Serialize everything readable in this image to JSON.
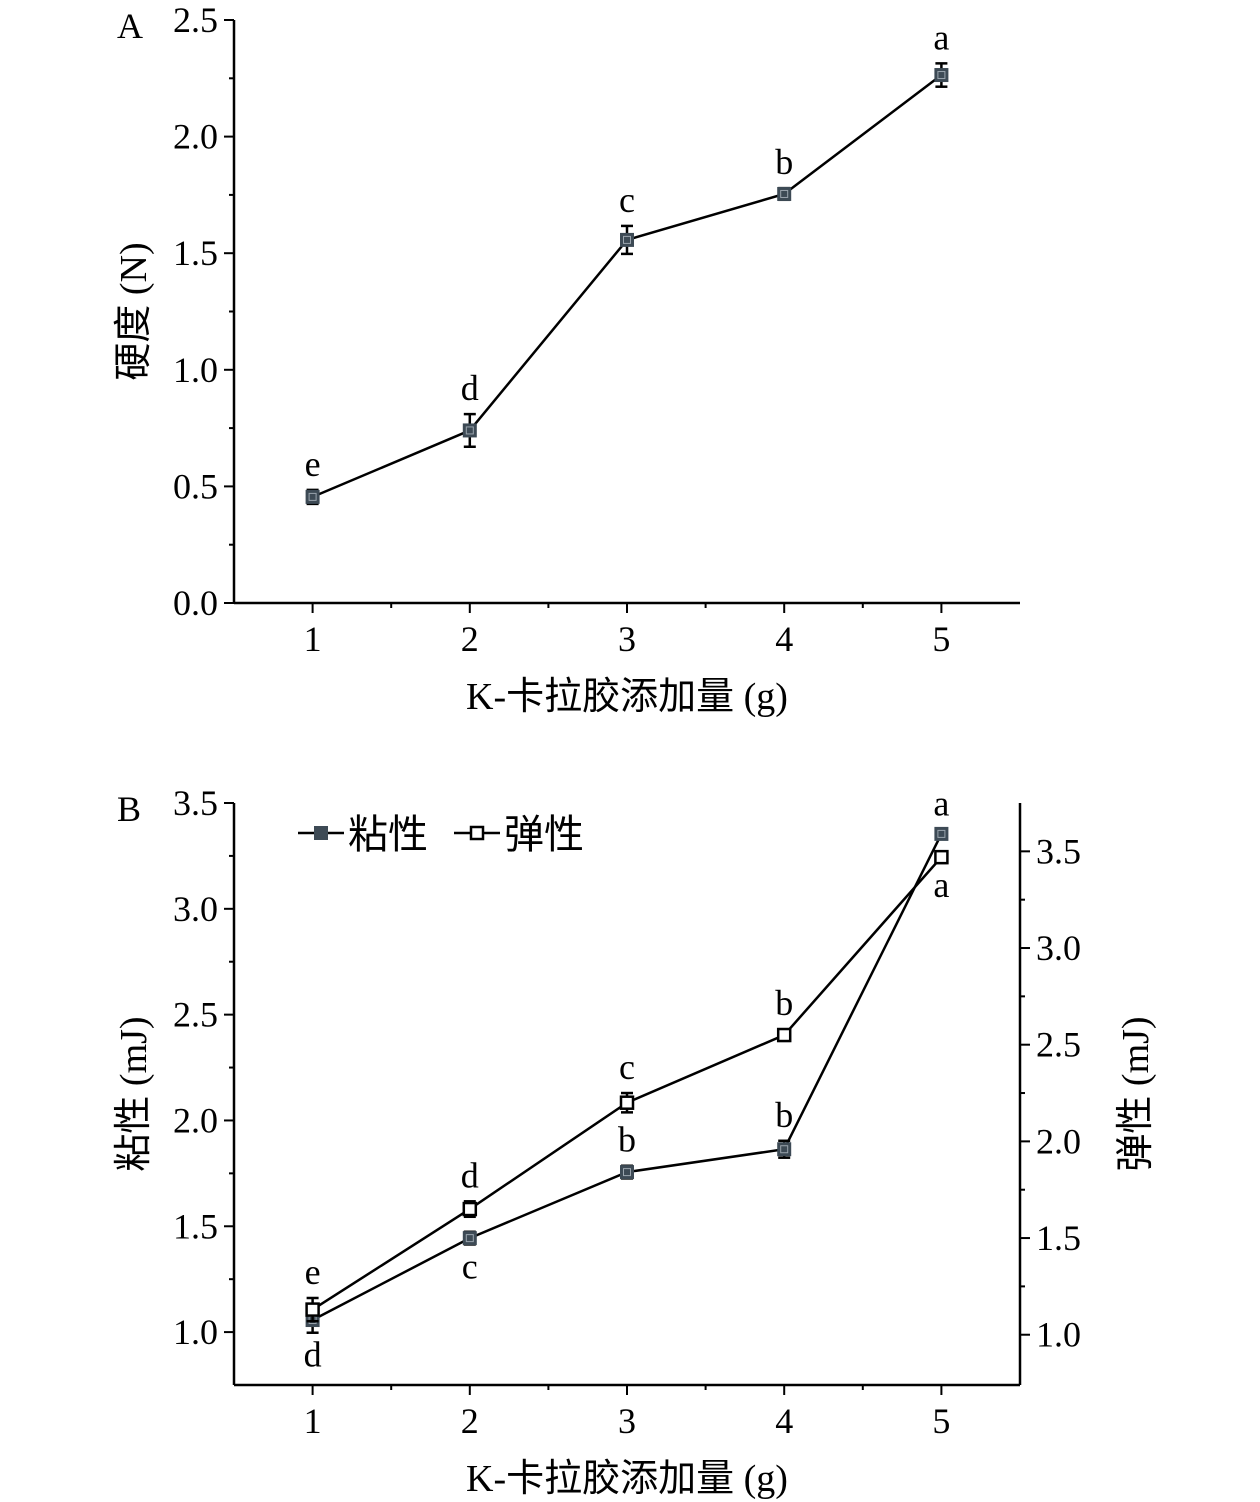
{
  "colors": {
    "filled_marker": "#3d4a55",
    "line": "#000000"
  },
  "chart_data": [
    {
      "type": "line",
      "panel_label": "A",
      "xlabel": "K-卡拉胶添加量 (g)",
      "ylabel": "硬度 (N)",
      "x": [
        1,
        2,
        3,
        4,
        5
      ],
      "xlim": [
        0.5,
        5.5
      ],
      "ylim": [
        0,
        2.5
      ],
      "xticks": [
        "1",
        "2",
        "3",
        "4",
        "5"
      ],
      "yticks": [
        "0.0",
        "0.5",
        "1.0",
        "1.5",
        "2.0",
        "2.5"
      ],
      "series": [
        {
          "name": "硬度",
          "axis": "left",
          "marker": "filled-square",
          "values": [
            0.455,
            0.74,
            1.557,
            1.754,
            2.264
          ],
          "errors": [
            0.03,
            0.07,
            0.06,
            0.025,
            0.05
          ],
          "letters": [
            "e",
            "d",
            "c",
            "b",
            "a"
          ],
          "letter_pos": [
            "above",
            "above",
            "above",
            "above",
            "above"
          ]
        }
      ]
    },
    {
      "type": "line",
      "panel_label": "B",
      "xlabel": "K-卡拉胶添加量 (g)",
      "ylabel": "粘性 (mJ)",
      "y2label": "弹性 (mJ)",
      "x": [
        1,
        2,
        3,
        4,
        5
      ],
      "xlim": [
        0.5,
        5.5
      ],
      "ylim": [
        0.75,
        3.5
      ],
      "y2lim": [
        0.74,
        3.75
      ],
      "xticks": [
        "1",
        "2",
        "3",
        "4",
        "5"
      ],
      "yticks": [
        "1.0",
        "1.5",
        "2.0",
        "2.5",
        "3.0",
        "3.5"
      ],
      "y2ticks": [
        "1.0",
        "1.5",
        "2.0",
        "2.5",
        "3.0",
        "3.5"
      ],
      "legend": {
        "position": "top-left",
        "entries": [
          "粘性",
          "弹性"
        ]
      },
      "series": [
        {
          "name": "粘性",
          "axis": "left",
          "marker": "filled-square",
          "values": [
            1.057,
            1.444,
            1.756,
            1.864,
            3.354
          ],
          "errors": [
            0.06,
            0.03,
            0.03,
            0.04,
            0.02
          ],
          "letters": [
            "d",
            "c",
            "b",
            "b",
            "a"
          ],
          "letter_pos": [
            "below",
            "below",
            "above",
            "above",
            "above"
          ]
        },
        {
          "name": "弹性",
          "axis": "right",
          "marker": "open-square",
          "values": [
            1.13,
            1.65,
            2.2,
            2.55,
            3.47
          ],
          "errors": [
            0.06,
            0.04,
            0.05,
            0.03,
            0.03
          ],
          "letters": [
            "e",
            "d",
            "c",
            "b",
            "a"
          ],
          "letter_pos": [
            "above",
            "above",
            "above",
            "above",
            "below"
          ]
        }
      ]
    }
  ]
}
